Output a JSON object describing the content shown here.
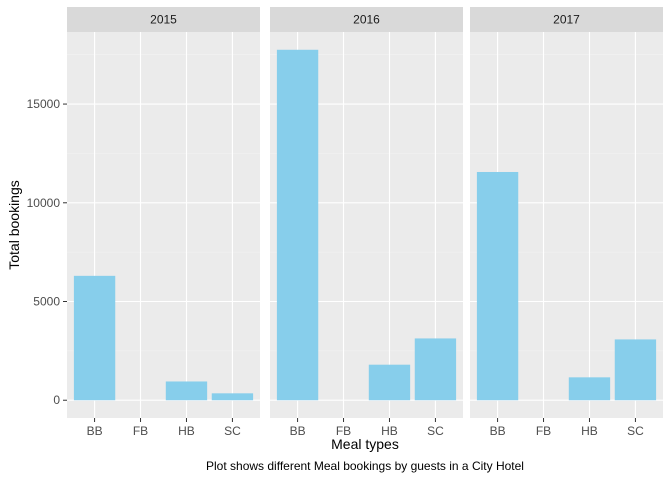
{
  "chart_data": {
    "type": "bar",
    "facet_by": "year",
    "facets": [
      {
        "label": "2015",
        "categories": [
          "BB",
          "FB",
          "HB",
          "SC"
        ],
        "values": [
          6300,
          0,
          950,
          350
        ]
      },
      {
        "label": "2016",
        "categories": [
          "BB",
          "FB",
          "HB",
          "SC"
        ],
        "values": [
          17750,
          0,
          1800,
          3130
        ]
      },
      {
        "label": "2017",
        "categories": [
          "BB",
          "FB",
          "HB",
          "SC"
        ],
        "values": [
          11560,
          0,
          1160,
          3080
        ]
      }
    ],
    "xlabel": "Meal types",
    "ylabel": "Total bookings",
    "caption": "Plot shows different Meal bookings by guests in a City Hotel",
    "ylim": [
      -900,
      18650
    ],
    "yticks": [
      0,
      5000,
      10000,
      15000
    ],
    "ytick_labels": [
      "0",
      "5000",
      "10000",
      "15000"
    ],
    "grid": true,
    "legend": "none",
    "colors": {
      "bar": "#87CEEB",
      "panel": "#EBEBEB",
      "strip": "#D9D9D9",
      "grid_major": "#FFFFFF",
      "grid_minor": "#F2F2F2"
    }
  }
}
